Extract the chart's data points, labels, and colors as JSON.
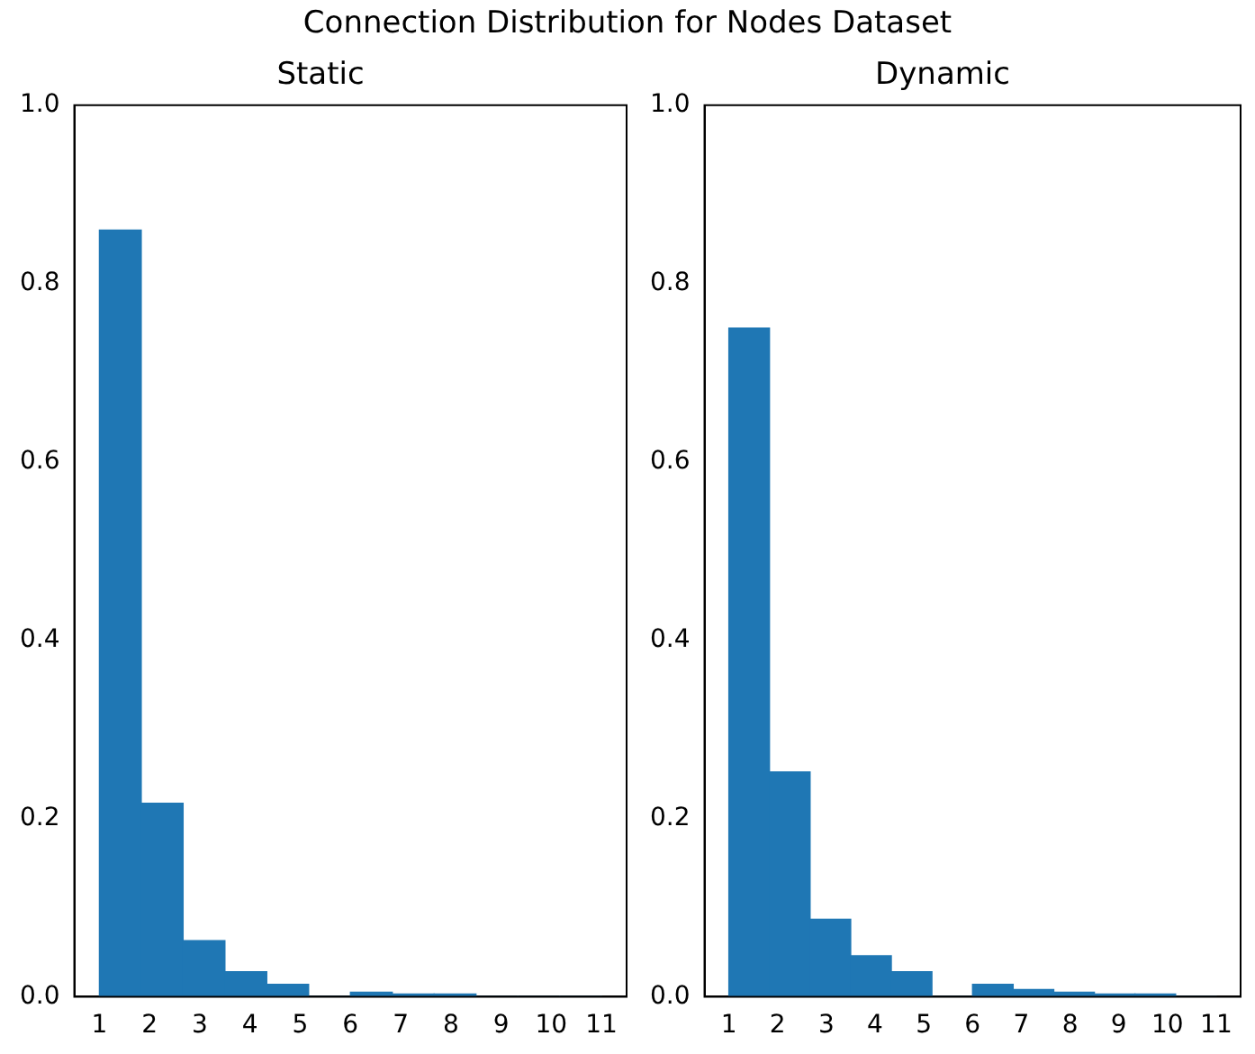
{
  "chart_data": [
    {
      "type": "histogram",
      "title": "Static",
      "annotations": [
        "Connection Distribution for Nodes Dataset"
      ],
      "color": "#1f77b4",
      "bins": [
        1,
        1.8333,
        2.6667,
        3.5,
        4.3333,
        5.1667,
        6,
        6.8333,
        7.6667,
        8.5,
        9.3333,
        10.1667,
        11
      ],
      "values": [
        0.86,
        0.217,
        0.063,
        0.028,
        0.014,
        0,
        0.005,
        0.003,
        0.003,
        0,
        0,
        0
      ],
      "xlim": [
        0.5,
        11.5
      ],
      "xticks": [
        1,
        2,
        3,
        4,
        5,
        6,
        7,
        8,
        9,
        10,
        11
      ],
      "ylim": [
        0,
        1
      ],
      "yticks": [
        {
          "value": 0,
          "label": "0.0"
        },
        {
          "value": 0.2,
          "label": "0.2"
        },
        {
          "value": 0.4,
          "label": "0.4"
        },
        {
          "value": 0.6,
          "label": "0.6"
        },
        {
          "value": 0.8,
          "label": "0.8"
        },
        {
          "value": 1,
          "label": "1.0"
        }
      ],
      "grid": false,
      "legend": false
    },
    {
      "type": "histogram",
      "title": "Dynamic",
      "color": "#1f77b4",
      "bins": [
        1,
        1.8333,
        2.6667,
        3.5,
        4.3333,
        5.1667,
        6,
        6.8333,
        7.6667,
        8.5,
        9.3333,
        10.1667,
        11
      ],
      "values": [
        0.75,
        0.252,
        0.087,
        0.046,
        0.028,
        0,
        0.014,
        0.008,
        0.005,
        0.003,
        0.003,
        0
      ],
      "xlim": [
        0.5,
        11.5
      ],
      "xticks": [
        1,
        2,
        3,
        4,
        5,
        6,
        7,
        8,
        9,
        10,
        11
      ],
      "ylim": [
        0,
        1
      ],
      "yticks": [
        {
          "value": 0,
          "label": "0.0"
        },
        {
          "value": 0.2,
          "label": "0.2"
        },
        {
          "value": 0.4,
          "label": "0.4"
        },
        {
          "value": 0.6,
          "label": "0.6"
        },
        {
          "value": 0.8,
          "label": "0.8"
        },
        {
          "value": 1,
          "label": "1.0"
        }
      ],
      "grid": false,
      "legend": false
    }
  ]
}
